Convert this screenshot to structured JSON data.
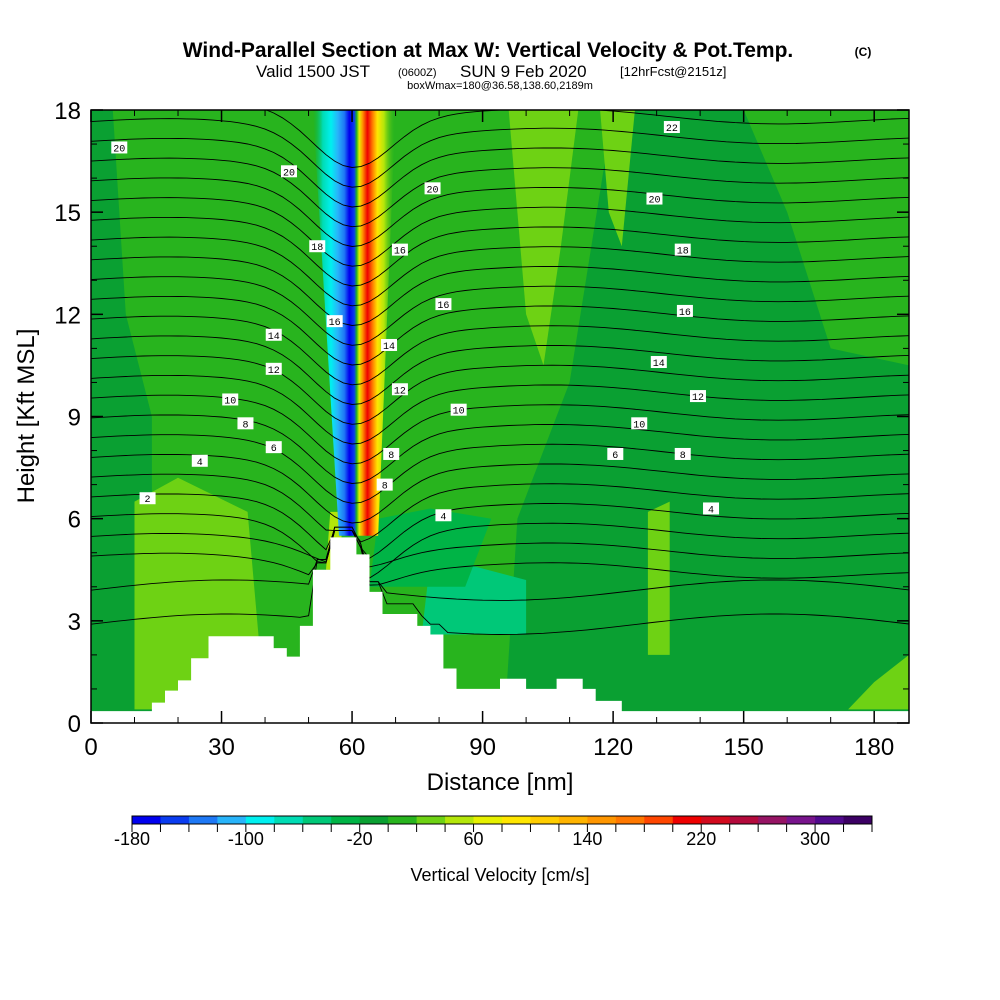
{
  "header": {
    "title_main": "Wind-Parallel Section at Max W: Vertical Velocity & Pot.Temp.",
    "title_mark": "(C)",
    "valid_prefix": "Valid 1500 JST",
    "valid_utc": "(0600Z)",
    "valid_date": "SUN 9 Feb 2020",
    "valid_fcst": "[12hrFcst@2151z]",
    "box_info": "boxWmax=180@36.58,138.60,2189m"
  },
  "chart_data": {
    "type": "heatmap",
    "xlabel": "Distance [nm]",
    "ylabel": "Height [Kft MSL]",
    "xlim": [
      0,
      188
    ],
    "ylim": [
      0,
      18
    ],
    "x_ticks": [
      0,
      30,
      60,
      90,
      120,
      150,
      180
    ],
    "y_ticks": [
      0,
      3,
      6,
      9,
      12,
      15,
      18
    ],
    "x_tick_labels": [
      "0",
      "30",
      "60",
      "90",
      "120",
      "150",
      "180"
    ],
    "y_tick_labels": [
      "0",
      "3",
      "6",
      "9",
      "12",
      "15",
      "18"
    ],
    "colorbar": {
      "label": "Vertical Velocity [cm/s]",
      "min": -180,
      "max": 340,
      "step": 20,
      "tick_values": [
        -180,
        -100,
        -20,
        60,
        140,
        220,
        300
      ],
      "tick_labels": [
        "-180",
        "-100",
        "-20",
        "60",
        "140",
        "220",
        "300"
      ],
      "colors": [
        "#0000ee",
        "#0a3cf0",
        "#1e78f5",
        "#28b4fa",
        "#00f0f0",
        "#00dcb4",
        "#00c878",
        "#00b446",
        "#0aa032",
        "#28b41e",
        "#6ed214",
        "#b4e60a",
        "#e6f000",
        "#ffe600",
        "#ffcd00",
        "#ffb400",
        "#ff9600",
        "#ff7800",
        "#ff4600",
        "#ee0000",
        "#d20a1e",
        "#b40a3c",
        "#961464",
        "#78148c",
        "#500a8c",
        "#3c0064"
      ]
    },
    "terrain_profile": [
      [
        0,
        0.35
      ],
      [
        14,
        0.35
      ],
      [
        14,
        0.6
      ],
      [
        17,
        0.6
      ],
      [
        17,
        0.95
      ],
      [
        20,
        0.95
      ],
      [
        20,
        1.25
      ],
      [
        23,
        1.25
      ],
      [
        23,
        1.9
      ],
      [
        27,
        1.9
      ],
      [
        27,
        2.55
      ],
      [
        42,
        2.55
      ],
      [
        42,
        2.2
      ],
      [
        45,
        2.2
      ],
      [
        45,
        1.95
      ],
      [
        48,
        1.95
      ],
      [
        48,
        2.85
      ],
      [
        51,
        2.85
      ],
      [
        51,
        4.5
      ],
      [
        55,
        4.5
      ],
      [
        55,
        5.45
      ],
      [
        61,
        5.45
      ],
      [
        61,
        4.95
      ],
      [
        64,
        4.95
      ],
      [
        64,
        3.85
      ],
      [
        67,
        3.85
      ],
      [
        67,
        3.2
      ],
      [
        75,
        3.2
      ],
      [
        75,
        2.85
      ],
      [
        78,
        2.85
      ],
      [
        78,
        2.6
      ],
      [
        81,
        2.6
      ],
      [
        81,
        1.6
      ],
      [
        84,
        1.6
      ],
      [
        84,
        1.0
      ],
      [
        94,
        1.0
      ],
      [
        94,
        1.3
      ],
      [
        100,
        1.3
      ],
      [
        100,
        1.0
      ],
      [
        107,
        1.0
      ],
      [
        107,
        1.3
      ],
      [
        113,
        1.3
      ],
      [
        113,
        1.0
      ],
      [
        116,
        1.0
      ],
      [
        116,
        0.65
      ],
      [
        122,
        0.65
      ],
      [
        122,
        0.35
      ],
      [
        188,
        0.35
      ]
    ],
    "theta_labels": [
      {
        "text": "20",
        "x": 6.5,
        "y": 16.9
      },
      {
        "text": "20",
        "x": 45.5,
        "y": 16.2
      },
      {
        "text": "20",
        "x": 78.5,
        "y": 15.7
      },
      {
        "text": "22",
        "x": 133.5,
        "y": 17.5
      },
      {
        "text": "20",
        "x": 129.5,
        "y": 15.4
      },
      {
        "text": "18",
        "x": 52,
        "y": 14.0
      },
      {
        "text": "16",
        "x": 71,
        "y": 13.9
      },
      {
        "text": "18",
        "x": 136,
        "y": 13.9
      },
      {
        "text": "16",
        "x": 81,
        "y": 12.3
      },
      {
        "text": "16",
        "x": 136.5,
        "y": 12.1
      },
      {
        "text": "16",
        "x": 56,
        "y": 11.8
      },
      {
        "text": "14",
        "x": 42,
        "y": 11.4
      },
      {
        "text": "14",
        "x": 68.5,
        "y": 11.1
      },
      {
        "text": "14",
        "x": 130.5,
        "y": 10.6
      },
      {
        "text": "12",
        "x": 42,
        "y": 10.4
      },
      {
        "text": "12",
        "x": 71,
        "y": 9.8
      },
      {
        "text": "12",
        "x": 139.5,
        "y": 9.6
      },
      {
        "text": "10",
        "x": 32,
        "y": 9.5
      },
      {
        "text": "10",
        "x": 84.5,
        "y": 9.2
      },
      {
        "text": "10",
        "x": 126,
        "y": 8.8
      },
      {
        "text": "8",
        "x": 35.5,
        "y": 8.8
      },
      {
        "text": "8",
        "x": 69,
        "y": 7.9
      },
      {
        "text": "8",
        "x": 136,
        "y": 7.9
      },
      {
        "text": "8",
        "x": 67.5,
        "y": 7.0
      },
      {
        "text": "6",
        "x": 42,
        "y": 8.1
      },
      {
        "text": "6",
        "x": 120.5,
        "y": 7.9
      },
      {
        "text": "4",
        "x": 25,
        "y": 7.7
      },
      {
        "text": "4",
        "x": 81,
        "y": 6.1
      },
      {
        "text": "4",
        "x": 142.5,
        "y": 6.3
      },
      {
        "text": "2",
        "x": 13,
        "y": 6.6
      }
    ]
  }
}
